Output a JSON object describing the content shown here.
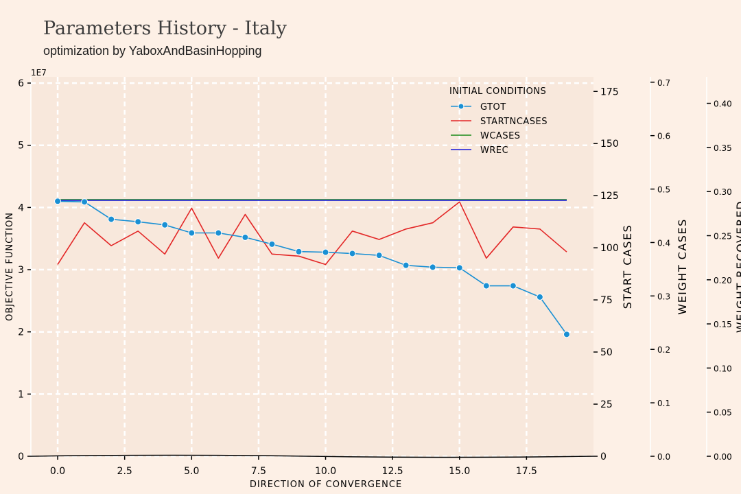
{
  "header": {
    "title": "Parameters History - Italy",
    "subtitle": "optimization by YaboxAndBasinHopping"
  },
  "chart_data": {
    "type": "line",
    "xlabel": "DIRECTION OF CONVERGENCE",
    "xlim": [
      -1,
      20
    ],
    "xticks": [
      "0.0",
      "2.5",
      "5.0",
      "7.5",
      "10.0",
      "12.5",
      "15.0",
      "17.5"
    ],
    "xtick_values": [
      0,
      2.5,
      5,
      7.5,
      10,
      12.5,
      15,
      17.5
    ],
    "grid": true,
    "legend": {
      "title": "INITIAL CONDITIONS",
      "placement": "top-right"
    },
    "axes": [
      {
        "id": "objective",
        "label": "OBJECTIVE FUNCTION",
        "side": "left",
        "offset_label": "1E7",
        "ylim": [
          0,
          6.1
        ],
        "ticks": [
          "0",
          "1",
          "2",
          "3",
          "4",
          "5",
          "6"
        ],
        "tick_values": [
          0,
          1,
          2,
          3,
          4,
          5,
          6
        ]
      },
      {
        "id": "startcases",
        "label": "START CASES",
        "side": "right",
        "ylim": [
          0,
          182
        ],
        "ticks": [
          "0",
          "25",
          "50",
          "75",
          "100",
          "125",
          "150",
          "175"
        ],
        "tick_values": [
          0,
          25,
          50,
          75,
          100,
          125,
          150,
          175
        ]
      },
      {
        "id": "wcases",
        "label": "WEIGHT CASES",
        "side": "right",
        "ylim": [
          0,
          0.71
        ],
        "ticks": [
          "0.0",
          "0.1",
          "0.2",
          "0.3",
          "0.4",
          "0.5",
          "0.6",
          "0.7"
        ],
        "tick_values": [
          0,
          0.1,
          0.2,
          0.3,
          0.4,
          0.5,
          0.6,
          0.7
        ]
      },
      {
        "id": "wrec",
        "label": "WEIGHT RECOVERED",
        "side": "right",
        "ylim": [
          0,
          0.43
        ],
        "ticks": [
          "0.00",
          "0.05",
          "0.10",
          "0.15",
          "0.20",
          "0.25",
          "0.30",
          "0.35",
          "0.40"
        ],
        "tick_values": [
          0,
          0.05,
          0.1,
          0.15,
          0.2,
          0.25,
          0.3,
          0.35,
          0.4
        ]
      }
    ],
    "series": [
      {
        "name": "GTOT",
        "axis": "objective",
        "color": "#1a90d4",
        "marker": true,
        "x": [
          0,
          1,
          2,
          3,
          4,
          5,
          6,
          7,
          8,
          9,
          10,
          11,
          12,
          13,
          14,
          15,
          16,
          17,
          18,
          19
        ],
        "y": [
          4.1,
          4.09,
          3.81,
          3.77,
          3.72,
          3.59,
          3.59,
          3.52,
          3.41,
          3.29,
          3.28,
          3.26,
          3.23,
          3.07,
          3.04,
          3.03,
          2.74,
          2.74,
          2.56,
          1.96
        ]
      },
      {
        "name": "STARTNCASES",
        "axis": "startcases",
        "color": "#e32626",
        "marker": false,
        "x": [
          0,
          1,
          2,
          3,
          4,
          5,
          6,
          7,
          8,
          9,
          10,
          11,
          12,
          13,
          14,
          15,
          16,
          17,
          18,
          19
        ],
        "y": [
          92,
          112,
          101,
          108,
          97,
          119,
          95,
          116,
          97,
          96,
          92,
          108,
          104,
          109,
          112,
          122,
          95,
          110,
          109,
          98
        ]
      },
      {
        "name": "WCASES",
        "axis": "wcases",
        "color": "#1a8a1a",
        "marker": false,
        "x": [
          0,
          1,
          2,
          3,
          4,
          5,
          6,
          7,
          8,
          9,
          10,
          11,
          12,
          13,
          14,
          15,
          16,
          17,
          18,
          19
        ],
        "y": [
          0.48,
          0.48,
          0.48,
          0.48,
          0.48,
          0.48,
          0.48,
          0.48,
          0.48,
          0.48,
          0.48,
          0.48,
          0.48,
          0.48,
          0.48,
          0.48,
          0.48,
          0.48,
          0.48,
          0.48
        ]
      },
      {
        "name": "WREC",
        "axis": "wrec",
        "color": "#1515dc",
        "marker": false,
        "x": [
          0,
          1,
          2,
          3,
          4,
          5,
          6,
          7,
          8,
          9,
          10,
          11,
          12,
          13,
          14,
          15,
          16,
          17,
          18,
          19
        ],
        "y": [
          0.29,
          0.29,
          0.29,
          0.29,
          0.29,
          0.29,
          0.29,
          0.29,
          0.29,
          0.29,
          0.29,
          0.29,
          0.29,
          0.29,
          0.29,
          0.29,
          0.29,
          0.29,
          0.29,
          0.29
        ]
      }
    ]
  }
}
